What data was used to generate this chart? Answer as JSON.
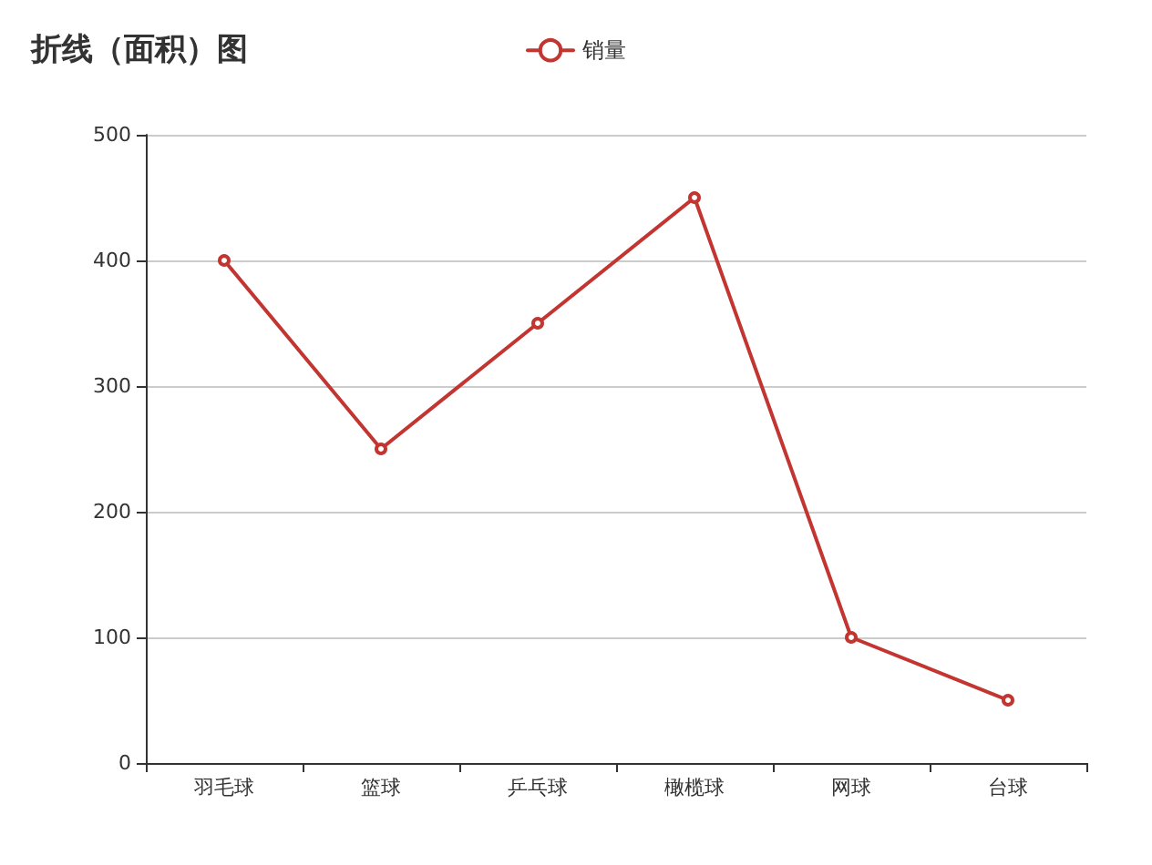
{
  "chart_data": {
    "type": "line",
    "title": "折线（面积）图",
    "categories": [
      "羽毛球",
      "篮球",
      "乒乓球",
      "橄榄球",
      "网球",
      "台球"
    ],
    "series": [
      {
        "name": "销量",
        "color": "#c23531",
        "values": [
          400,
          250,
          350,
          450,
          100,
          50
        ]
      }
    ],
    "ylim": [
      0,
      500
    ],
    "yticks": [
      0,
      100,
      200,
      300,
      400,
      500
    ],
    "grid": "y",
    "legend": "top",
    "marker": "circle",
    "line_style": "solid"
  }
}
